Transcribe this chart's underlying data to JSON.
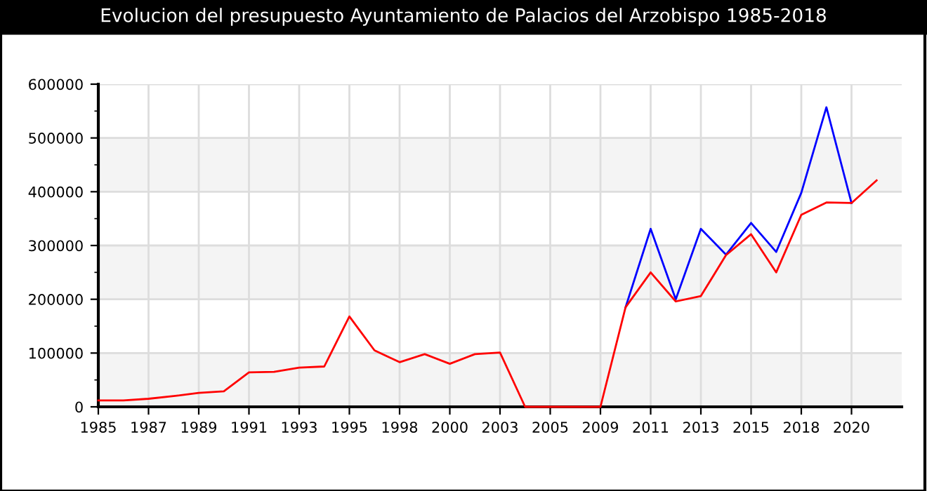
{
  "chart_data": {
    "type": "line",
    "title": "Evolucion del presupuesto Ayuntamiento de Palacios del Arzobispo 1985-2018",
    "categories": [
      "1985",
      null,
      "1987",
      null,
      "1989",
      null,
      "1991",
      null,
      "1993",
      null,
      "1995",
      null,
      "1998",
      null,
      "2000",
      null,
      "2003",
      null,
      "2005",
      null,
      "2009",
      null,
      "2011",
      null,
      "2013",
      null,
      "2015",
      null,
      "2018",
      null,
      "2020",
      null
    ],
    "series": [
      {
        "color": "#0000ff",
        "values": [
          null,
          null,
          null,
          null,
          null,
          null,
          null,
          null,
          null,
          null,
          null,
          null,
          null,
          null,
          null,
          null,
          null,
          null,
          null,
          null,
          null,
          185000,
          331000,
          200000,
          331000,
          283000,
          342000,
          288000,
          398000,
          557000,
          379000,
          null
        ]
      },
      {
        "color": "#ff0000",
        "values": [
          12000,
          12000,
          15000,
          20000,
          26000,
          29000,
          64000,
          65000,
          73000,
          75000,
          168000,
          105000,
          83000,
          98000,
          80000,
          98000,
          101000,
          0,
          0,
          0,
          0,
          185000,
          250000,
          196000,
          206000,
          282000,
          321000,
          250000,
          357000,
          380000,
          379000,
          421000
        ]
      }
    ],
    "ylim": [
      0,
      600000
    ],
    "yticks": [
      0,
      100000,
      200000,
      300000,
      400000,
      500000,
      600000
    ],
    "grid": true
  }
}
